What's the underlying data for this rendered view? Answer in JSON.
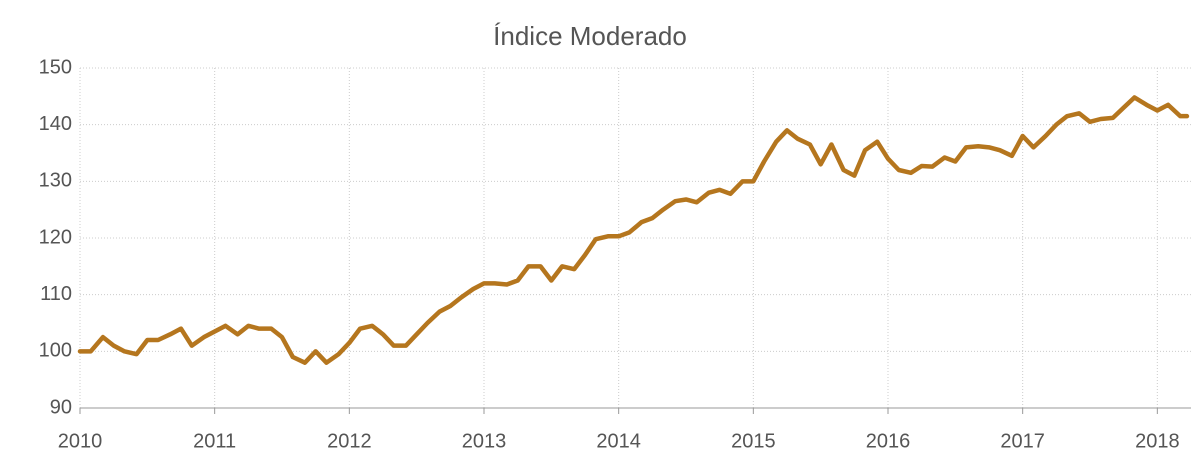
{
  "chart_data": {
    "type": "line",
    "title": "Índice Moderado",
    "x": [
      2010,
      2010.08,
      2010.17,
      2010.25,
      2010.33,
      2010.42,
      2010.5,
      2010.58,
      2010.67,
      2010.75,
      2010.83,
      2010.92,
      2011,
      2011.08,
      2011.17,
      2011.25,
      2011.33,
      2011.42,
      2011.5,
      2011.58,
      2011.67,
      2011.75,
      2011.83,
      2011.92,
      2012,
      2012.08,
      2012.17,
      2012.25,
      2012.33,
      2012.42,
      2012.5,
      2012.58,
      2012.67,
      2012.75,
      2012.83,
      2012.92,
      2013,
      2013.08,
      2013.17,
      2013.25,
      2013.33,
      2013.42,
      2013.5,
      2013.58,
      2013.67,
      2013.75,
      2013.83,
      2013.92,
      2014,
      2014.08,
      2014.17,
      2014.25,
      2014.33,
      2014.42,
      2014.5,
      2014.58,
      2014.67,
      2014.75,
      2014.83,
      2014.92,
      2015,
      2015.08,
      2015.17,
      2015.25,
      2015.33,
      2015.42,
      2015.5,
      2015.58,
      2015.67,
      2015.75,
      2015.83,
      2015.92,
      2016,
      2016.08,
      2016.17,
      2016.25,
      2016.33,
      2016.42,
      2016.5,
      2016.58,
      2016.67,
      2016.75,
      2016.83,
      2016.92,
      2017,
      2017.08,
      2017.17,
      2017.25,
      2017.33,
      2017.42,
      2017.5,
      2017.58,
      2017.67,
      2017.75,
      2017.83,
      2017.92,
      2018,
      2018.08,
      2018.17,
      2018.22
    ],
    "series": [
      {
        "name": "Índice Moderado",
        "color": "#b5761e",
        "values": [
          100,
          100,
          102.5,
          101,
          100,
          99.5,
          102,
          102,
          103,
          104,
          101,
          102.5,
          103.5,
          104.5,
          103,
          104.5,
          104,
          104,
          102.5,
          99,
          98,
          100,
          98,
          99.5,
          101.5,
          104,
          104.5,
          103,
          101,
          101,
          103,
          105,
          107,
          108,
          109.5,
          111,
          112,
          112,
          111.8,
          112.5,
          115,
          115,
          112.5,
          115,
          114.5,
          117,
          119.8,
          120.3,
          120.3,
          121,
          122.8,
          123.5,
          125,
          126.5,
          126.8,
          126.3,
          128,
          128.5,
          127.8,
          130,
          130,
          133.5,
          137,
          139,
          137.5,
          136.5,
          133,
          136.5,
          132,
          131,
          135.5,
          137,
          134,
          132,
          131.5,
          132.7,
          132.6,
          134.2,
          133.5,
          136,
          136.2,
          136,
          135.5,
          134.5,
          138,
          136,
          138,
          140,
          141.5,
          142,
          140.5,
          141,
          141.2,
          143,
          144.8,
          143.5,
          142.5,
          143.5,
          141.5,
          141.5
        ]
      }
    ],
    "xlim": [
      2010,
      2018.25
    ],
    "xticks": [
      2010,
      2011,
      2012,
      2013,
      2014,
      2015,
      2016,
      2017,
      2018
    ],
    "ylim": [
      90,
      150
    ],
    "yticks": [
      90,
      100,
      110,
      120,
      130,
      140,
      150
    ],
    "grid": true
  }
}
